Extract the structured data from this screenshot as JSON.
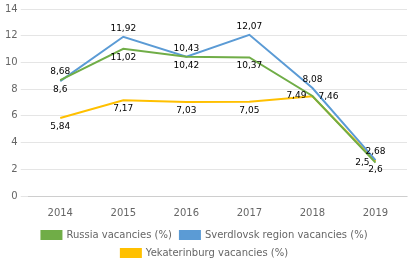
{
  "chart_data": {
    "type": "line",
    "categories": [
      2014,
      2015,
      2016,
      2017,
      2018,
      2019
    ],
    "series": [
      {
        "name": "Russia vacancies (%)",
        "color": "#70ad47",
        "values": [
          8.68,
          11.02,
          10.42,
          10.37,
          7.49,
          2.5
        ],
        "value_labels": [
          "8,68",
          "11,02",
          "10,42",
          "10,37",
          "7,49",
          "2,5"
        ]
      },
      {
        "name": "Sverdlovsk region vacancies (%)",
        "color": "#5b9bd5",
        "values": [
          8.6,
          11.92,
          10.43,
          12.07,
          8.08,
          2.68
        ],
        "value_labels": [
          "8,6",
          "11,92",
          "10,43",
          "12,07",
          "8,08",
          "2,68"
        ]
      },
      {
        "name": "Yekaterinburg vacancies (%)",
        "color": "#ffc000",
        "values": [
          5.84,
          7.17,
          7.03,
          7.05,
          7.46,
          2.6
        ],
        "value_labels": [
          "5,84",
          "7,17",
          "7,03",
          "7,05",
          "7,46",
          "2,6"
        ]
      }
    ],
    "ylim": [
      0,
      14
    ],
    "yticks": [
      0,
      2,
      4,
      6,
      8,
      10,
      12,
      14
    ],
    "grid": true,
    "legend": "bottom",
    "data_labels": true
  }
}
